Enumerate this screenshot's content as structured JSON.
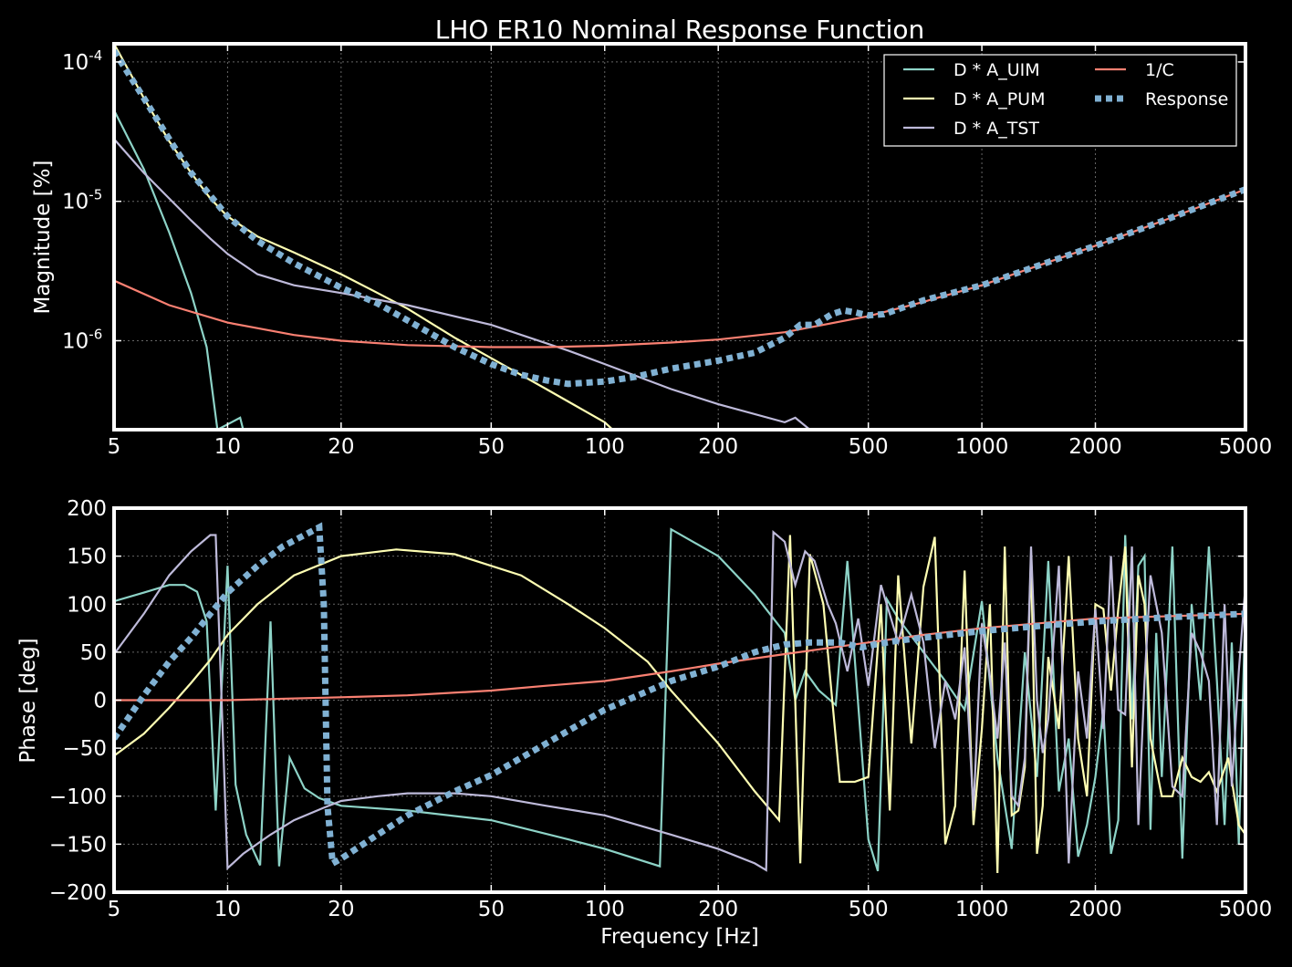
{
  "chart_data": {
    "type": "line",
    "title": "LHO ER10 Nominal Response Function",
    "x_scale": "log",
    "xlim": [
      5,
      5000
    ],
    "xticks": [
      5,
      10,
      20,
      50,
      100,
      200,
      500,
      1000,
      2000,
      5000
    ],
    "xticklabels": [
      "5",
      "10",
      "20",
      "50",
      "100",
      "200",
      "500",
      "1000",
      "2000",
      "5000"
    ],
    "xlabel": "Frequency [Hz]",
    "grid": true,
    "colors": {
      "D * A_UIM": "#8dd3c7",
      "D * A_PUM": "#ffffb3",
      "D * A_TST": "#bebada",
      "1/C": "#fa8072",
      "Response": "#80b1d3"
    },
    "legend": {
      "placement": "top-right",
      "columns": 2,
      "entries": [
        "D * A_UIM",
        "D * A_PUM",
        "D * A_TST",
        "1/C",
        "Response"
      ]
    },
    "panels": [
      {
        "name": "magnitude",
        "ylabel": "Magnitude [%]",
        "y_scale": "log",
        "ylim": [
          2.3e-07,
          0.000135
        ],
        "ytick_bases": [
          "10",
          "10",
          "10"
        ],
        "ytick_exponents": [
          "-4",
          "-5",
          "-6"
        ],
        "ytick_values": [
          0.0001,
          1e-05,
          1e-06
        ],
        "series": [
          {
            "name": "D * A_UIM",
            "x": [
              5,
              6,
              7,
              8,
              8.8,
              9.4,
              10.8,
              11
            ],
            "y": [
              4.5e-05,
              1.7e-05,
              6e-06,
              2.2e-06,
              9e-07,
              2.3e-07,
              2.8e-07,
              2.3e-07
            ]
          },
          {
            "name": "D * A_PUM",
            "x": [
              5,
              6,
              7,
              8,
              9,
              10,
              12,
              15,
              20,
              25,
              30,
              40,
              50,
              70,
              100,
              105
            ],
            "y": [
              0.000135,
              5.5e-05,
              2.7e-05,
              1.6e-05,
              1.05e-05,
              7.8e-06,
              5.6e-06,
              4.3e-06,
              3e-06,
              2.2e-06,
              1.7e-06,
              1.05e-06,
              7.5e-07,
              4.5e-07,
              2.6e-07,
              2.3e-07
            ]
          },
          {
            "name": "D * A_TST",
            "x": [
              5,
              6,
              7,
              8,
              9,
              10,
              12,
              15,
              20,
              30,
              50,
              80,
              100,
              150,
              200,
              300,
              320,
              350
            ],
            "y": [
              2.8e-05,
              1.6e-05,
              1.05e-05,
              7.3e-06,
              5.4e-06,
              4.2e-06,
              3e-06,
              2.5e-06,
              2.2e-06,
              1.8e-06,
              1.3e-06,
              8.5e-07,
              6.8e-07,
              4.5e-07,
              3.5e-07,
              2.6e-07,
              2.8e-07,
              2.3e-07
            ]
          },
          {
            "name": "1/C",
            "x": [
              5,
              7,
              10,
              15,
              20,
              30,
              50,
              70,
              100,
              150,
              200,
              300,
              500,
              700,
              1000,
              2000,
              3000,
              5000
            ],
            "y": [
              2.7e-06,
              1.8e-06,
              1.35e-06,
              1.1e-06,
              1e-06,
              9.3e-07,
              9e-07,
              9e-07,
              9.2e-07,
              9.7e-07,
              1.02e-06,
              1.15e-06,
              1.5e-06,
              1.9e-06,
              2.5e-06,
              4.8e-06,
              7.2e-06,
              1.22e-05
            ]
          },
          {
            "name": "Response",
            "x": [
              5,
              6,
              7,
              8,
              9,
              10,
              12,
              15,
              20,
              25,
              30,
              40,
              50,
              60,
              70,
              80,
              100,
              120,
              150,
              200,
              250,
              300,
              330,
              360,
              400,
              430,
              460,
              500,
              550,
              700,
              1000,
              2000,
              3000,
              5000
            ],
            "y": [
              0.00012,
              5.5e-05,
              2.8e-05,
              1.6e-05,
              1.1e-05,
              7.8e-06,
              5.2e-06,
              3.6e-06,
              2.4e-06,
              1.85e-06,
              1.4e-06,
              9e-07,
              6.8e-07,
              5.7e-07,
              5.2e-07,
              4.9e-07,
              5.1e-07,
              5.5e-07,
              6.3e-07,
              7.2e-07,
              8.2e-07,
              1.05e-06,
              1.3e-06,
              1.3e-06,
              1.55e-06,
              1.65e-06,
              1.6e-06,
              1.52e-06,
              1.55e-06,
              1.95e-06,
              2.5e-06,
              4.8e-06,
              7.2e-06,
              1.22e-05
            ]
          }
        ]
      },
      {
        "name": "phase",
        "ylabel": "Phase [deg]",
        "y_scale": "linear",
        "ylim": [
          -200,
          200
        ],
        "yticks": [
          -200,
          -150,
          -100,
          -50,
          0,
          50,
          100,
          150,
          200
        ],
        "yticklabels": [
          "−200",
          "−150",
          "−100",
          "−50",
          "0",
          "50",
          "100",
          "150",
          "200"
        ],
        "series": [
          {
            "name": "D * A_UIM",
            "x": [
              5,
              6,
              7,
              7.7,
              8.3,
              8.8,
              9.3,
              10,
              10.5,
              11.2,
              12.2,
              13,
              13.7,
              14.6,
              16,
              17.5,
              20,
              30,
              50,
              80,
              100,
              140,
              150,
              200,
              250,
              300,
              320,
              340,
              370,
              410,
              440,
              500,
              530,
              560,
              600,
              700,
              800,
              900,
              1000,
              1100,
              1200,
              1300,
              1400,
              1500,
              1600,
              1700,
              1800,
              1900,
              2000,
              2100,
              2200,
              2300,
              2400,
              2500,
              2600,
              2700,
              2800,
              2900,
              3000,
              3200,
              3400,
              3600,
              3800,
              4000,
              4200,
              4400,
              4600,
              4800,
              5000
            ],
            "y": [
              103,
              112,
              120,
              120,
              113,
              82,
              -115,
              140,
              -88,
              -140,
              -172,
              82,
              -173,
              -60,
              -92,
              -102,
              -110,
              -115,
              -125,
              -145,
              -155,
              -173,
              178,
              150,
              110,
              70,
              0,
              30,
              10,
              -5,
              145,
              -145,
              -178,
              105,
              85,
              50,
              20,
              -10,
              103,
              -60,
              -155,
              50,
              -80,
              145,
              -95,
              -40,
              -163,
              -130,
              -80,
              -10,
              -160,
              -125,
              172,
              -20,
              140,
              150,
              -135,
              70,
              -80,
              160,
              -165,
              100,
              0,
              160,
              20,
              -130,
              60,
              -150,
              100
            ]
          },
          {
            "name": "D * A_PUM",
            "x": [
              5,
              6,
              7,
              8,
              9,
              10,
              12,
              15,
              20,
              28,
              40,
              60,
              80,
              100,
              130,
              150,
              200,
              250,
              290,
              310,
              330,
              350,
              380,
              420,
              460,
              500,
              540,
              570,
              600,
              650,
              700,
              750,
              800,
              850,
              900,
              950,
              1000,
              1050,
              1100,
              1150,
              1200,
              1250,
              1300,
              1350,
              1400,
              1450,
              1500,
              1600,
              1700,
              1800,
              1900,
              2000,
              2100,
              2200,
              2300,
              2400,
              2500,
              2600,
              2700,
              2800,
              3000,
              3200,
              3400,
              3600,
              3800,
              4000,
              4200,
              4500,
              4800,
              5000
            ],
            "y": [
              -58,
              -35,
              -8,
              18,
              42,
              68,
              100,
              130,
              150,
              157,
              152,
              130,
              100,
              75,
              40,
              10,
              -45,
              -95,
              -125,
              172,
              -170,
              152,
              100,
              -85,
              -85,
              -80,
              100,
              -115,
              130,
              -45,
              118,
              170,
              -150,
              -110,
              135,
              -130,
              -30,
              100,
              -180,
              160,
              -120,
              -115,
              -70,
              150,
              -160,
              -110,
              45,
              -30,
              150,
              -40,
              -100,
              100,
              95,
              10,
              95,
              160,
              -70,
              130,
              100,
              -40,
              -100,
              -100,
              -60,
              -80,
              -85,
              -75,
              -95,
              -60,
              -130,
              -140
            ]
          },
          {
            "name": "D * A_TST",
            "x": [
              5,
              6,
              7,
              8,
              9,
              9.3,
              10,
              11,
              13,
              15,
              18,
              20,
              25,
              30,
              40,
              50,
              70,
              100,
              150,
              200,
              250,
              268,
              280,
              300,
              320,
              340,
              360,
              390,
              410,
              440,
              470,
              500,
              540,
              600,
              650,
              700,
              750,
              800,
              850,
              900,
              950,
              1000,
              1050,
              1100,
              1150,
              1200,
              1250,
              1300,
              1350,
              1400,
              1450,
              1500,
              1600,
              1700,
              1800,
              1900,
              2000,
              2100,
              2200,
              2300,
              2400,
              2500,
              2600,
              2700,
              2800,
              3000,
              3200,
              3400,
              3600,
              3800,
              4000,
              4200,
              4400,
              4600,
              4800,
              5000
            ],
            "y": [
              48,
              90,
              130,
              155,
              172,
              172,
              -175,
              -160,
              -140,
              -125,
              -112,
              -105,
              -100,
              -97,
              -97,
              -100,
              -110,
              -120,
              -140,
              -155,
              -170,
              -177,
              175,
              165,
              120,
              155,
              145,
              100,
              80,
              30,
              85,
              15,
              120,
              60,
              110,
              60,
              -50,
              20,
              -20,
              55,
              -115,
              80,
              25,
              -40,
              60,
              -100,
              -110,
              -60,
              160,
              0,
              -55,
              -20,
              140,
              -170,
              30,
              -40,
              95,
              -30,
              150,
              -10,
              -15,
              160,
              -130,
              20,
              130,
              70,
              -90,
              -100,
              70,
              50,
              20,
              -130,
              100,
              -90,
              30,
              120
            ]
          },
          {
            "name": "1/C",
            "x": [
              5,
              10,
              20,
              30,
              50,
              70,
              100,
              150,
              200,
              300,
              500,
              700,
              1000,
              2000,
              5000
            ],
            "y": [
              0,
              0,
              3,
              5,
              10,
              15,
              20,
              30,
              38,
              48,
              60,
              68,
              75,
              85,
              90
            ]
          },
          {
            "name": "Response",
            "x": [
              5,
              6,
              7,
              8,
              9,
              10,
              12,
              14,
              16,
              17.5,
              18,
              18.4,
              19,
              20,
              25,
              30,
              40,
              50,
              70,
              100,
              150,
              200,
              250,
              300,
              350,
              420,
              480,
              520,
              600,
              700,
              1000,
              1500,
              2000,
              3000,
              5000
            ],
            "y": [
              -40,
              5,
              40,
              65,
              90,
              112,
              140,
              160,
              172,
              180,
              100,
              -110,
              -170,
              -165,
              -140,
              -120,
              -95,
              -78,
              -45,
              -10,
              20,
              35,
              50,
              58,
              60,
              60,
              55,
              58,
              62,
              65,
              72,
              78,
              82,
              86,
              90
            ]
          }
        ]
      }
    ]
  }
}
